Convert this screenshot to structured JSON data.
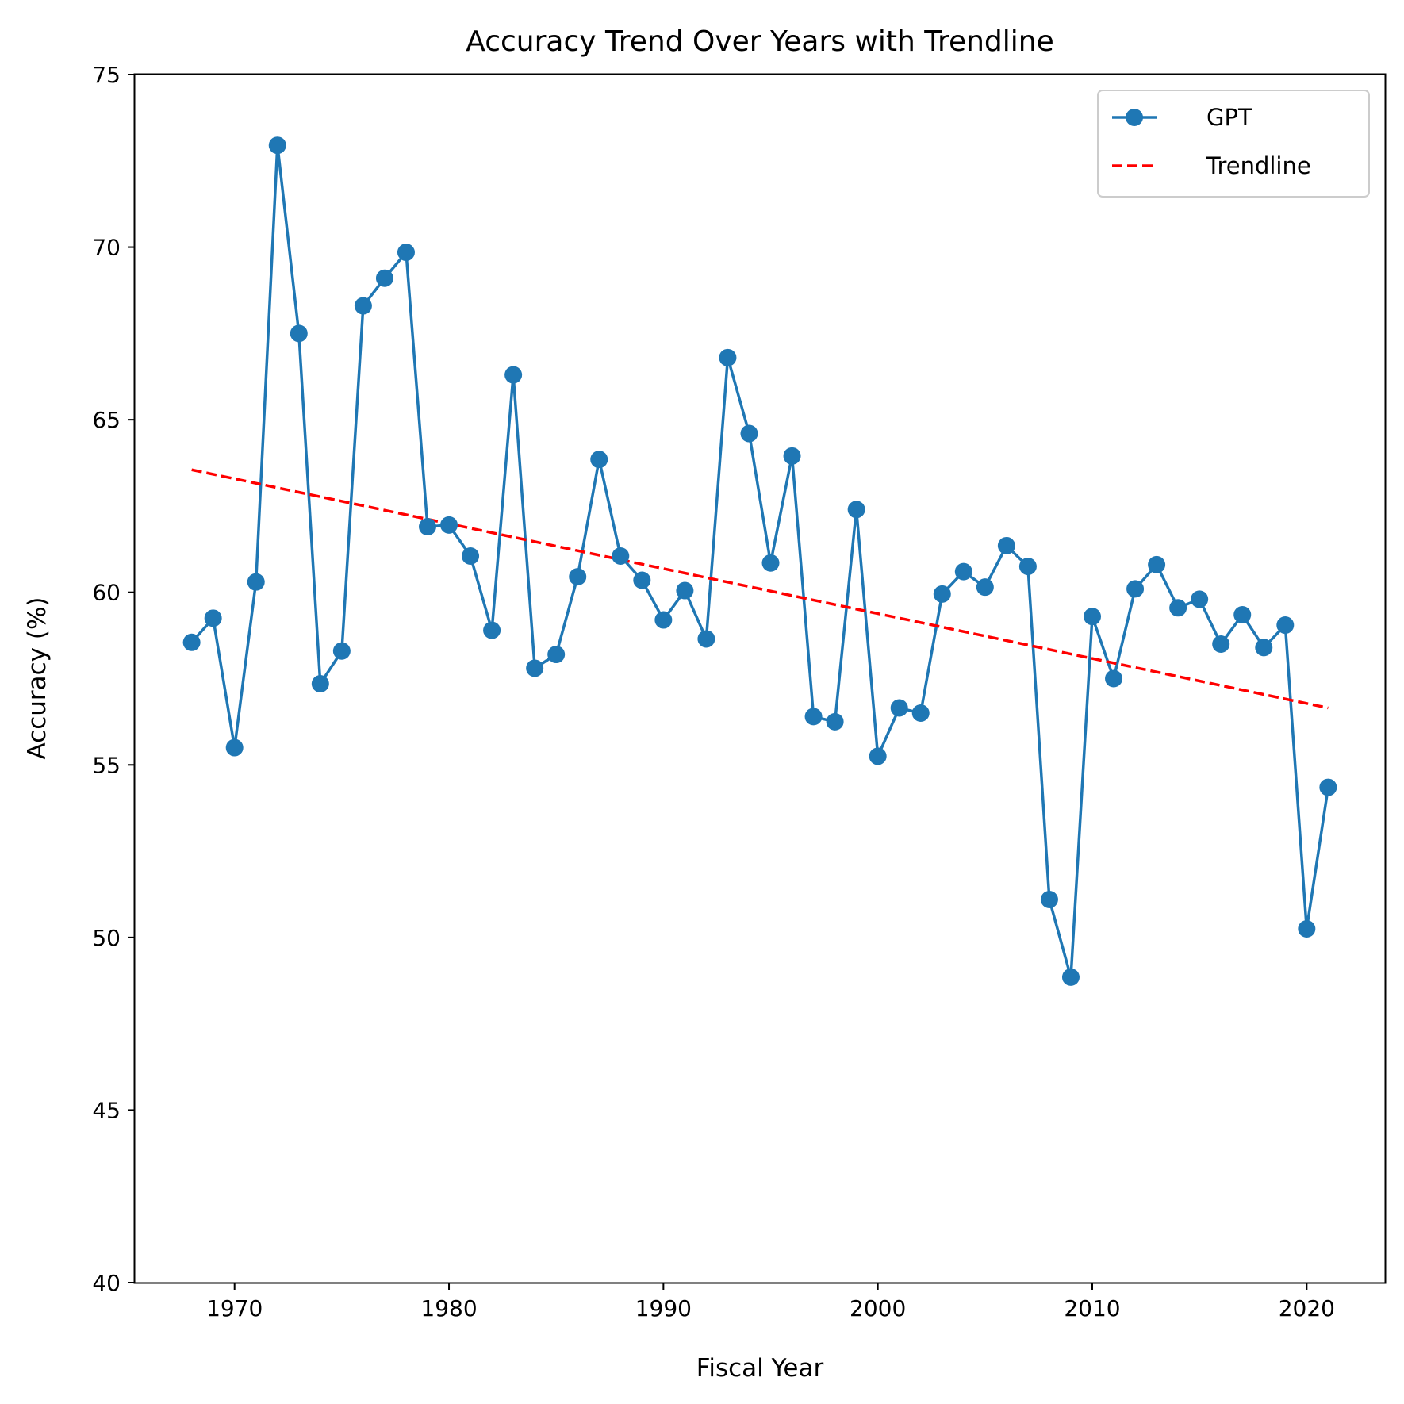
{
  "chart_data": {
    "type": "line",
    "title": "Accuracy Trend Over Years with Trendline",
    "xlabel": "Fiscal Year",
    "ylabel": "Accuracy (%)",
    "xlim": [
      1965.35,
      2023.65
    ],
    "ylim": [
      40,
      75
    ],
    "xticks": [
      1970,
      1980,
      1990,
      2000,
      2010,
      2020
    ],
    "yticks": [
      40,
      45,
      50,
      55,
      60,
      65,
      70,
      75
    ],
    "grid": false,
    "legend_position": "top-right",
    "x": [
      1968,
      1969,
      1970,
      1971,
      1972,
      1973,
      1974,
      1975,
      1976,
      1977,
      1978,
      1979,
      1980,
      1981,
      1982,
      1983,
      1984,
      1985,
      1986,
      1987,
      1988,
      1989,
      1990,
      1991,
      1992,
      1993,
      1994,
      1995,
      1996,
      1997,
      1998,
      1999,
      2000,
      2001,
      2002,
      2003,
      2004,
      2005,
      2006,
      2007,
      2008,
      2009,
      2010,
      2011,
      2012,
      2013,
      2014,
      2015,
      2016,
      2017,
      2018,
      2019,
      2020,
      2021
    ],
    "series": [
      {
        "name": "GPT",
        "color": "#1f77b4",
        "style": "solid-with-circle-markers",
        "values": [
          58.55,
          59.25,
          55.5,
          60.3,
          72.95,
          67.5,
          57.35,
          58.3,
          68.3,
          69.1,
          69.85,
          61.9,
          61.95,
          61.05,
          58.9,
          66.3,
          57.8,
          58.2,
          60.45,
          63.85,
          61.05,
          60.35,
          59.2,
          60.05,
          58.65,
          66.8,
          64.6,
          60.85,
          63.95,
          56.4,
          56.25,
          62.4,
          55.25,
          56.65,
          56.5,
          59.95,
          60.6,
          60.15,
          61.35,
          60.75,
          51.1,
          48.85,
          59.3,
          57.5,
          60.1,
          60.8,
          59.55,
          59.8,
          58.5,
          59.35,
          58.4,
          59.05,
          50.25,
          54.35
        ]
      },
      {
        "name": "Trendline",
        "color": "#ff0000",
        "style": "dashed",
        "x": [
          1968,
          2021
        ],
        "values": [
          63.55,
          56.65
        ]
      }
    ]
  }
}
